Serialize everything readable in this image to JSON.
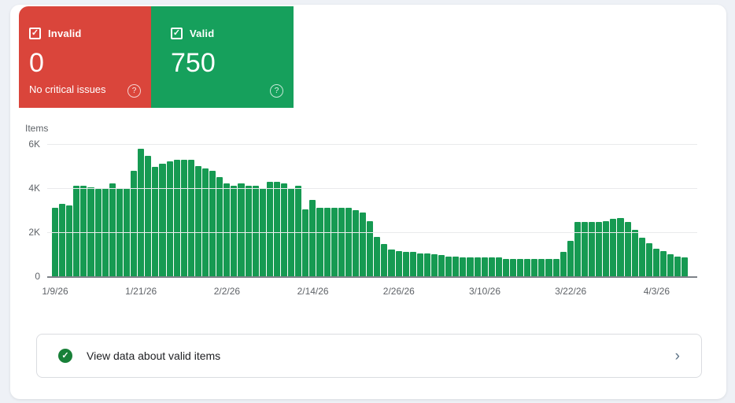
{
  "colors": {
    "invalid_red": "#da453b",
    "valid_green": "#16a05c",
    "bar_green": "#169a52",
    "footer_icon_green": "#188038",
    "background": "#eef1f6"
  },
  "icons": {
    "check": "✓",
    "help": "?",
    "chevron": "›"
  },
  "cards": {
    "invalid": {
      "label": "Invalid",
      "value": "0",
      "subtitle": "No critical issues",
      "checked": true
    },
    "valid": {
      "label": "Valid",
      "value": "750",
      "checked": true
    }
  },
  "chart_data": {
    "type": "bar",
    "title": "Items",
    "ylabel": "Items",
    "xlabel": "",
    "ylim": [
      0,
      6000
    ],
    "grid": true,
    "legend": "none",
    "y_ticks": [
      {
        "label": "6K",
        "value": 6000
      },
      {
        "label": "4K",
        "value": 4000
      },
      {
        "label": "2K",
        "value": 2000
      },
      {
        "label": "0",
        "value": 0
      }
    ],
    "x_tick_labels": [
      "1/9/26",
      "1/21/26",
      "2/2/26",
      "2/14/26",
      "2/26/26",
      "3/10/26",
      "3/22/26",
      "4/3/26"
    ],
    "x_tick_indices": [
      0,
      12,
      24,
      36,
      48,
      60,
      72,
      84
    ],
    "categories": [
      "1/9/26",
      "1/10/26",
      "1/11/26",
      "1/12/26",
      "1/13/26",
      "1/14/26",
      "1/15/26",
      "1/16/26",
      "1/17/26",
      "1/18/26",
      "1/19/26",
      "1/20/26",
      "1/21/26",
      "1/22/26",
      "1/23/26",
      "1/24/26",
      "1/25/26",
      "1/26/26",
      "1/27/26",
      "1/28/26",
      "1/29/26",
      "1/30/26",
      "1/31/26",
      "2/1/26",
      "2/2/26",
      "2/3/26",
      "2/4/26",
      "2/5/26",
      "2/6/26",
      "2/7/26",
      "2/8/26",
      "2/9/26",
      "2/10/26",
      "2/11/26",
      "2/12/26",
      "2/13/26",
      "2/14/26",
      "2/15/26",
      "2/16/26",
      "2/17/26",
      "2/18/26",
      "2/19/26",
      "2/20/26",
      "2/21/26",
      "2/22/26",
      "2/23/26",
      "2/24/26",
      "2/25/26",
      "2/26/26",
      "2/27/26",
      "2/28/26",
      "3/1/26",
      "3/2/26",
      "3/3/26",
      "3/4/26",
      "3/5/26",
      "3/6/26",
      "3/7/26",
      "3/8/26",
      "3/9/26",
      "3/10/26",
      "3/11/26",
      "3/12/26",
      "3/13/26",
      "3/14/26",
      "3/15/26",
      "3/16/26",
      "3/17/26",
      "3/18/26",
      "3/19/26",
      "3/20/26",
      "3/21/26",
      "3/22/26",
      "3/23/26",
      "3/24/26",
      "3/25/26",
      "3/26/26",
      "3/27/26",
      "3/28/26",
      "3/29/26",
      "3/30/26",
      "3/31/26",
      "4/1/26",
      "4/2/26",
      "4/3/26",
      "4/4/26",
      "4/5/26",
      "4/6/26",
      "4/7/26"
    ],
    "values": [
      3100,
      3300,
      3200,
      4100,
      4100,
      4050,
      3950,
      4000,
      4200,
      4000,
      4000,
      4800,
      5800,
      5450,
      4950,
      5100,
      5200,
      5300,
      5300,
      5300,
      5000,
      4900,
      4800,
      4500,
      4200,
      4100,
      4200,
      4100,
      4100,
      4000,
      4300,
      4300,
      4200,
      4000,
      4100,
      3050,
      3450,
      3100,
      3100,
      3100,
      3100,
      3100,
      3000,
      2900,
      2500,
      1800,
      1450,
      1200,
      1150,
      1100,
      1100,
      1050,
      1050,
      1000,
      950,
      900,
      900,
      850,
      850,
      850,
      850,
      850,
      850,
      800,
      800,
      800,
      780,
      780,
      780,
      780,
      800,
      1100,
      1600,
      2450,
      2450,
      2450,
      2450,
      2500,
      2600,
      2650,
      2450,
      2100,
      1750,
      1500,
      1250,
      1150,
      1000,
      900,
      850
    ]
  },
  "footer_row": {
    "label": "View data about valid items"
  }
}
